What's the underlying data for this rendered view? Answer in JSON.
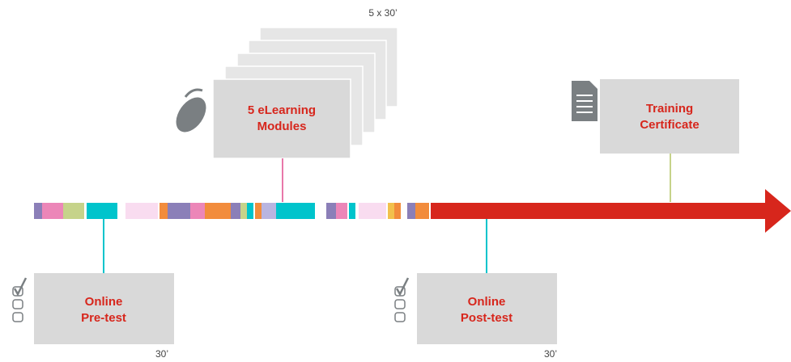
{
  "modules": {
    "count_label": "5 x 30’",
    "title_lines": [
      "5 eLearning",
      "Modules"
    ]
  },
  "certificate": {
    "title_lines": [
      "Training",
      "Certificate"
    ]
  },
  "pre_test": {
    "title_lines": [
      "Online",
      "Pre-test"
    ],
    "duration": "30’"
  },
  "post_test": {
    "title_lines": [
      "Online",
      "Post-test"
    ],
    "duration": "30’"
  }
}
